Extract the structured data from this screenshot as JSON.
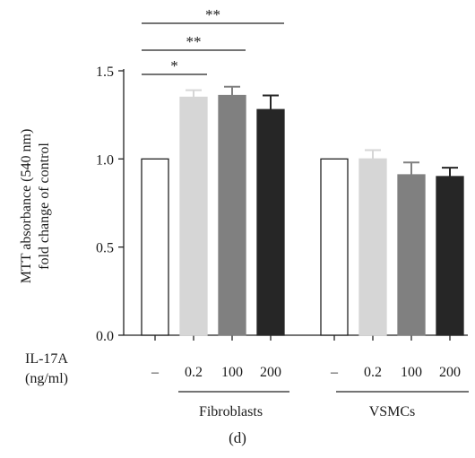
{
  "chart_data": {
    "type": "bar",
    "title": "",
    "panel_label": "(d)",
    "ylabel_lines": [
      "MTT absorbance (540 nm)",
      "fold change of control"
    ],
    "ylim": [
      0,
      1.5
    ],
    "yticks": [
      "0.0",
      "0.5",
      "1.0",
      "1.5"
    ],
    "ytick_values": [
      0.0,
      0.5,
      1.0,
      1.5
    ],
    "treatment_label_lines": [
      "IL-17A",
      "(ng/ml)"
    ],
    "groups": [
      {
        "name": "Fibroblasts",
        "categories": [
          "–",
          "0.2",
          "100",
          "200"
        ],
        "values": [
          1.0,
          1.35,
          1.36,
          1.28
        ],
        "errors": [
          0.0,
          0.04,
          0.05,
          0.08
        ]
      },
      {
        "name": "VSMCs",
        "categories": [
          "–",
          "0.2",
          "100",
          "200"
        ],
        "values": [
          1.0,
          1.0,
          0.91,
          0.9
        ],
        "errors": [
          0.0,
          0.05,
          0.07,
          0.05
        ]
      }
    ],
    "bar_colors": [
      "#ffffff",
      "#d6d6d6",
      "#808080",
      "#262626"
    ],
    "significance": [
      {
        "label": "*",
        "group": 0,
        "from": 0,
        "to": 1
      },
      {
        "label": "**",
        "group": 0,
        "from": 0,
        "to": 2
      },
      {
        "label": "**",
        "group": 0,
        "from": 0,
        "to": 3
      }
    ]
  }
}
